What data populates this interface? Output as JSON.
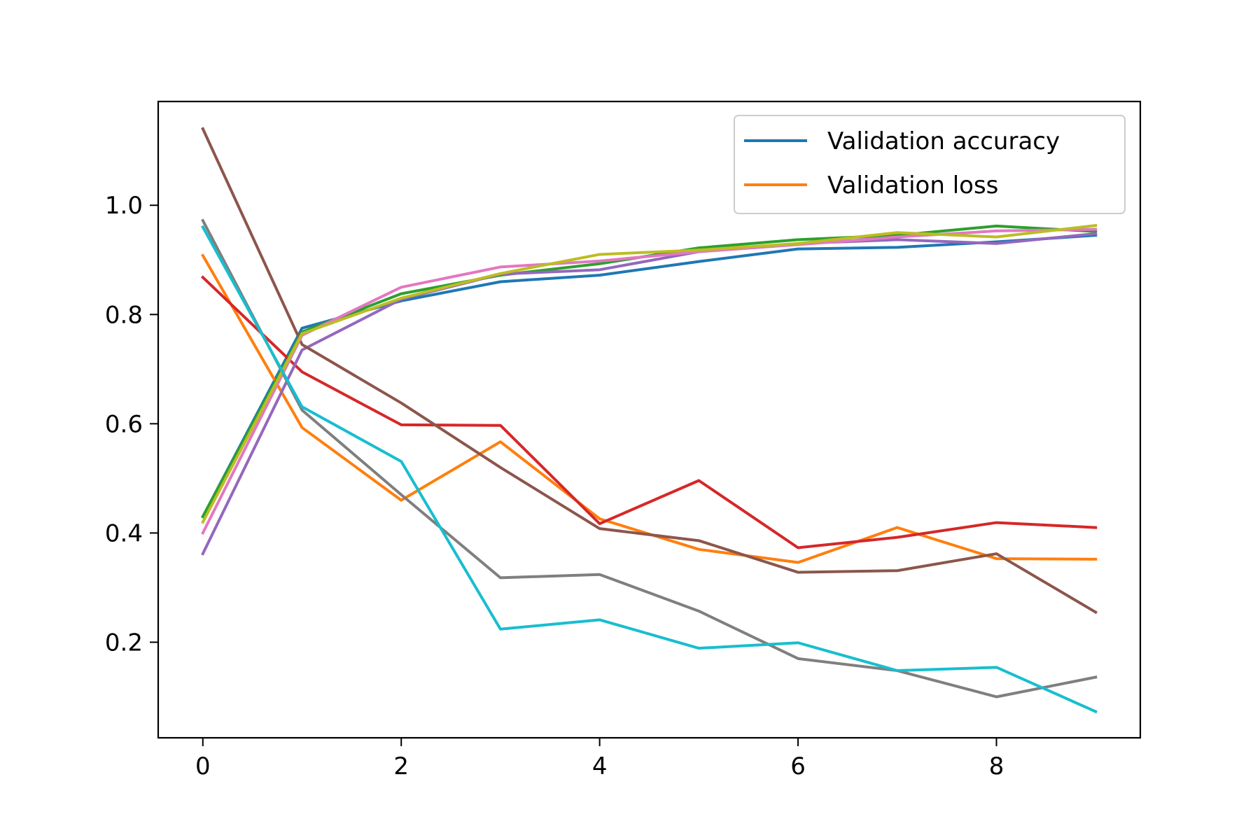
{
  "chart_data": {
    "type": "line",
    "title": "",
    "xlabel": "",
    "ylabel": "",
    "xlim": [
      -0.45,
      9.45
    ],
    "ylim": [
      0.025,
      1.19
    ],
    "x_ticks": [
      0,
      2,
      4,
      6,
      8
    ],
    "y_ticks": [
      0.2,
      0.4,
      0.6,
      0.8,
      1.0
    ],
    "x_tick_labels": [
      "0",
      "2",
      "4",
      "6",
      "8"
    ],
    "y_tick_labels": [
      "0.2",
      "0.4",
      "0.6",
      "0.8",
      "1.0"
    ],
    "grid": false,
    "legend_position": "upper-right",
    "legend": [
      {
        "label": "Validation accuracy",
        "color": "#1f77b4"
      },
      {
        "label": "Validation loss",
        "color": "#ff7f0e"
      }
    ],
    "x": [
      0,
      1,
      2,
      3,
      4,
      5,
      6,
      7,
      8,
      9
    ],
    "series": [
      {
        "color": "#1f77b4",
        "values": [
          0.43,
          0.775,
          0.825,
          0.86,
          0.872,
          0.897,
          0.92,
          0.923,
          0.933,
          0.945
        ]
      },
      {
        "color": "#ff7f0e",
        "values": [
          0.908,
          0.593,
          0.46,
          0.567,
          0.426,
          0.37,
          0.346,
          0.41,
          0.353,
          0.352
        ]
      },
      {
        "color": "#2ca02c",
        "values": [
          0.43,
          0.768,
          0.838,
          0.872,
          0.893,
          0.922,
          0.937,
          0.945,
          0.962,
          0.952
        ]
      },
      {
        "color": "#d62728",
        "values": [
          0.868,
          0.695,
          0.598,
          0.597,
          0.417,
          0.496,
          0.373,
          0.392,
          0.419,
          0.41
        ]
      },
      {
        "color": "#9467bd",
        "values": [
          0.362,
          0.735,
          0.828,
          0.874,
          0.882,
          0.915,
          0.93,
          0.937,
          0.93,
          0.948
        ]
      },
      {
        "color": "#8c564b",
        "values": [
          1.14,
          0.745,
          0.638,
          0.52,
          0.408,
          0.386,
          0.328,
          0.331,
          0.362,
          0.255
        ]
      },
      {
        "color": "#e377c2",
        "values": [
          0.4,
          0.762,
          0.85,
          0.887,
          0.898,
          0.915,
          0.928,
          0.942,
          0.953,
          0.956
        ]
      },
      {
        "color": "#7f7f7f",
        "values": [
          0.972,
          0.625,
          0.47,
          0.318,
          0.324,
          0.257,
          0.17,
          0.148,
          0.1,
          0.136
        ]
      },
      {
        "color": "#bcbd22",
        "values": [
          0.42,
          0.765,
          0.83,
          0.875,
          0.91,
          0.918,
          0.93,
          0.95,
          0.942,
          0.963
        ]
      },
      {
        "color": "#17becf",
        "values": [
          0.96,
          0.631,
          0.531,
          0.224,
          0.241,
          0.189,
          0.199,
          0.148,
          0.154,
          0.073
        ]
      }
    ]
  }
}
